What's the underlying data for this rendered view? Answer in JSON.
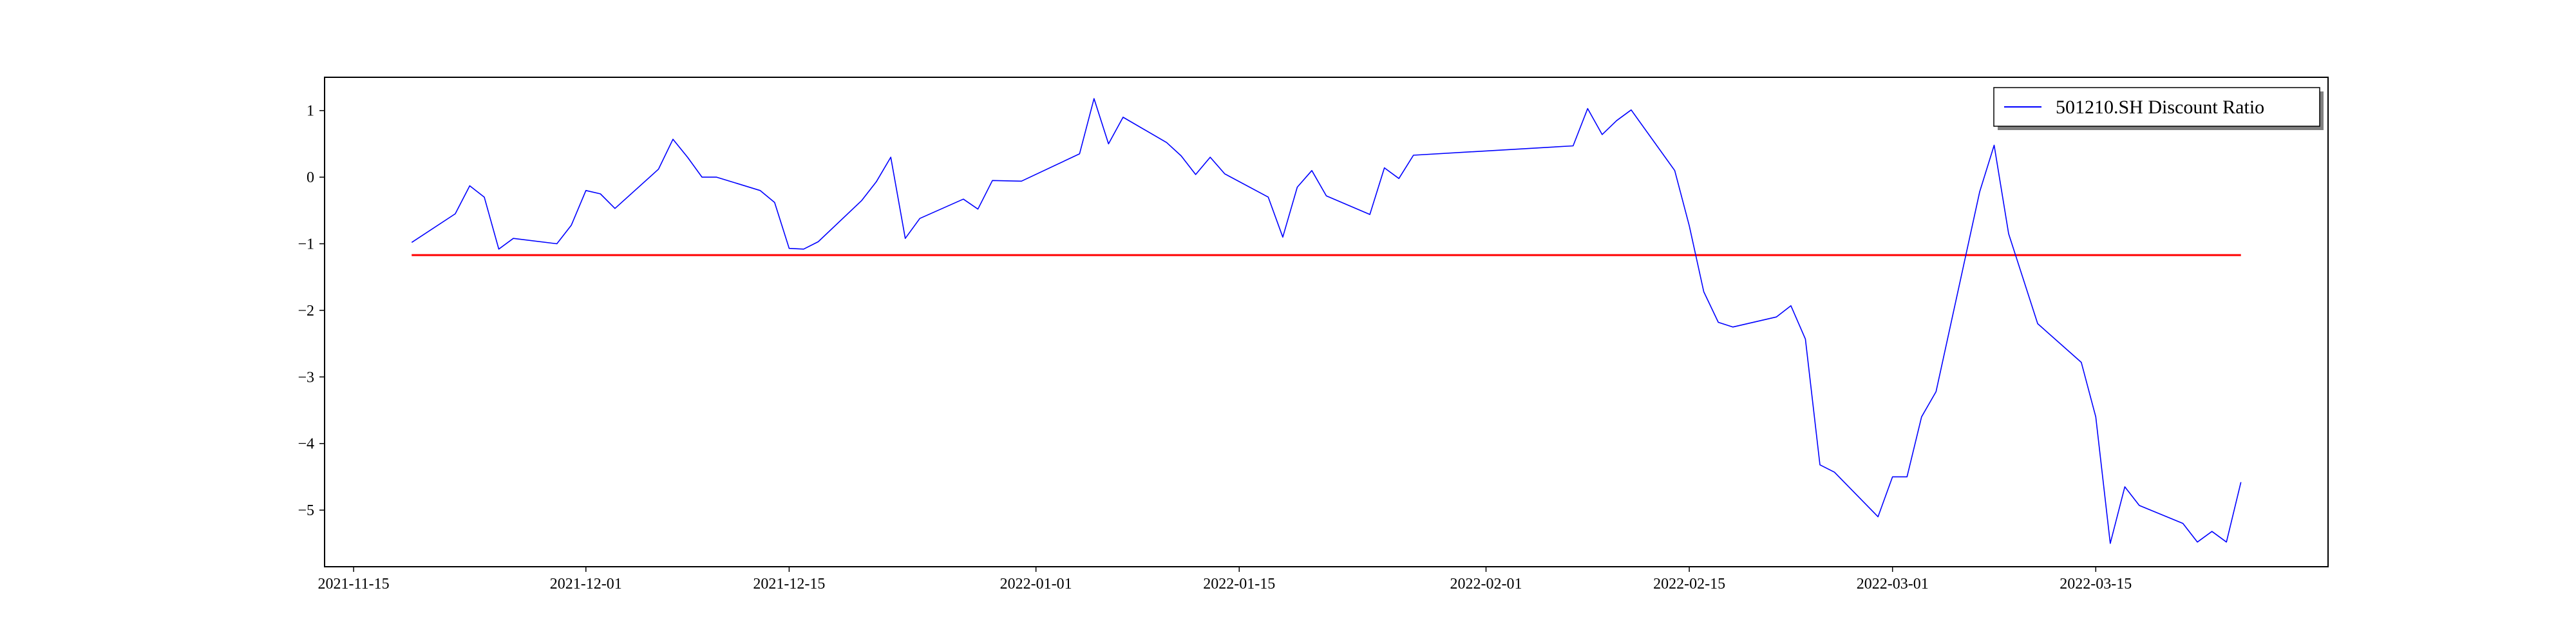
{
  "chart_data": {
    "type": "line",
    "title": "",
    "xlabel": "",
    "ylabel": "",
    "xlim": [
      "2021-11-13",
      "2022-03-31"
    ],
    "ylim": [
      -5.85,
      1.5
    ],
    "x_ticks": [
      "2021-11-15",
      "2021-12-01",
      "2021-12-15",
      "2022-01-01",
      "2022-01-15",
      "2022-02-01",
      "2022-02-15",
      "2022-03-01",
      "2022-03-15"
    ],
    "y_ticks": [
      1,
      0,
      -1,
      -2,
      -3,
      -4,
      -5
    ],
    "y_tick_labels": [
      "1",
      "0",
      "−1",
      "−2",
      "−3",
      "−4",
      "−5"
    ],
    "grid": false,
    "legend_placement": "top-right",
    "series": [
      {
        "name": "501210.SH Discount Ratio",
        "color": "#0000ff",
        "points": [
          [
            "2021-11-19",
            -0.98
          ],
          [
            "2021-11-22",
            -0.55
          ],
          [
            "2021-11-23",
            -0.13
          ],
          [
            "2021-11-24",
            -0.3
          ],
          [
            "2021-11-25",
            -1.08
          ],
          [
            "2021-11-26",
            -0.92
          ],
          [
            "2021-11-29",
            -1.0
          ],
          [
            "2021-11-30",
            -0.72
          ],
          [
            "2021-12-01",
            -0.2
          ],
          [
            "2021-12-02",
            -0.25
          ],
          [
            "2021-12-03",
            -0.47
          ],
          [
            "2021-12-06",
            0.12
          ],
          [
            "2021-12-07",
            0.57
          ],
          [
            "2021-12-08",
            0.3
          ],
          [
            "2021-12-09",
            0.0
          ],
          [
            "2021-12-10",
            0.0
          ],
          [
            "2021-12-13",
            -0.2
          ],
          [
            "2021-12-14",
            -0.38
          ],
          [
            "2021-12-15",
            -1.07
          ],
          [
            "2021-12-16",
            -1.08
          ],
          [
            "2021-12-17",
            -0.97
          ],
          [
            "2021-12-20",
            -0.35
          ],
          [
            "2021-12-21",
            -0.07
          ],
          [
            "2021-12-22",
            0.3
          ],
          [
            "2021-12-23",
            -0.92
          ],
          [
            "2021-12-24",
            -0.62
          ],
          [
            "2021-12-27",
            -0.33
          ],
          [
            "2021-12-28",
            -0.48
          ],
          [
            "2021-12-29",
            -0.05
          ],
          [
            "2021-12-31",
            -0.06
          ],
          [
            "2022-01-04",
            0.35
          ],
          [
            "2022-01-05",
            1.18
          ],
          [
            "2022-01-06",
            0.5
          ],
          [
            "2022-01-07",
            0.9
          ],
          [
            "2022-01-10",
            0.52
          ],
          [
            "2022-01-11",
            0.32
          ],
          [
            "2022-01-12",
            0.04
          ],
          [
            "2022-01-13",
            0.3
          ],
          [
            "2022-01-14",
            0.05
          ],
          [
            "2022-01-17",
            -0.3
          ],
          [
            "2022-01-18",
            -0.9
          ],
          [
            "2022-01-19",
            -0.15
          ],
          [
            "2022-01-20",
            0.1
          ],
          [
            "2022-01-21",
            -0.28
          ],
          [
            "2022-01-24",
            -0.56
          ],
          [
            "2022-01-25",
            0.14
          ],
          [
            "2022-01-26",
            -0.02
          ],
          [
            "2022-01-27",
            0.33
          ],
          [
            "2022-02-07",
            0.47
          ],
          [
            "2022-02-08",
            1.03
          ],
          [
            "2022-02-09",
            0.64
          ],
          [
            "2022-02-10",
            0.85
          ],
          [
            "2022-02-11",
            1.01
          ],
          [
            "2022-02-14",
            0.1
          ],
          [
            "2022-02-15",
            -0.73
          ],
          [
            "2022-02-16",
            -1.72
          ],
          [
            "2022-02-17",
            -2.18
          ],
          [
            "2022-02-18",
            -2.25
          ],
          [
            "2022-02-21",
            -2.1
          ],
          [
            "2022-02-22",
            -1.93
          ],
          [
            "2022-02-23",
            -2.43
          ],
          [
            "2022-02-24",
            -4.32
          ],
          [
            "2022-02-25",
            -4.43
          ],
          [
            "2022-02-28",
            -5.1
          ],
          [
            "2022-03-01",
            -4.5
          ],
          [
            "2022-03-02",
            -4.5
          ],
          [
            "2022-03-03",
            -3.6
          ],
          [
            "2022-03-04",
            -3.22
          ],
          [
            "2022-03-07",
            -0.22
          ],
          [
            "2022-03-08",
            0.48
          ],
          [
            "2022-03-09",
            -0.85
          ],
          [
            "2022-03-11",
            -2.2
          ],
          [
            "2022-03-14",
            -2.78
          ],
          [
            "2022-03-15",
            -3.6
          ],
          [
            "2022-03-16",
            -5.5
          ],
          [
            "2022-03-17",
            -4.65
          ],
          [
            "2022-03-18",
            -4.93
          ],
          [
            "2022-03-21",
            -5.2
          ],
          [
            "2022-03-22",
            -5.48
          ],
          [
            "2022-03-23",
            -5.32
          ],
          [
            "2022-03-24",
            -5.48
          ],
          [
            "2022-03-25",
            -4.58
          ]
        ]
      }
    ],
    "reference_line": {
      "color": "#ff0000",
      "y": -1.17,
      "x_start": "2021-11-19",
      "x_end": "2022-03-25"
    }
  }
}
